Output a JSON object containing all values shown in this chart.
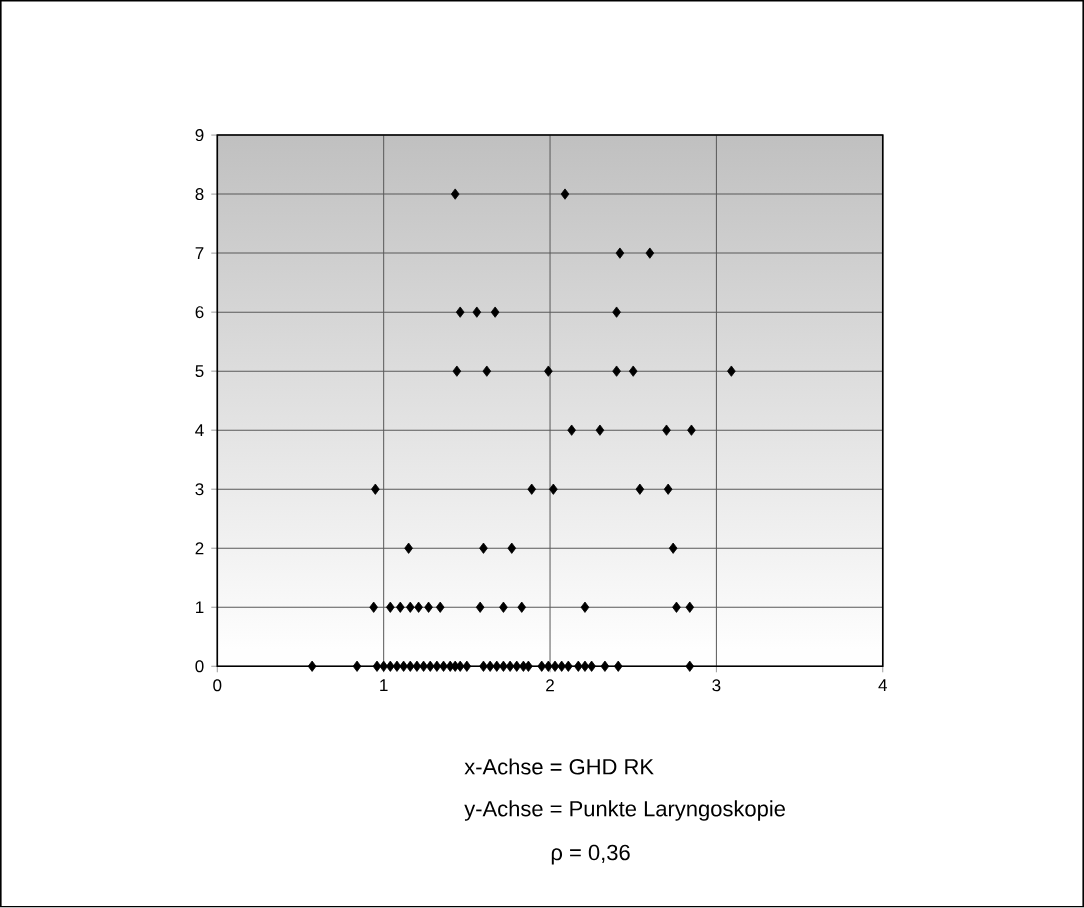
{
  "chart_data": {
    "type": "scatter",
    "xlim": [
      0,
      4
    ],
    "ylim": [
      0,
      9
    ],
    "xticks": [
      0,
      1,
      2,
      3,
      4
    ],
    "yticks": [
      0,
      1,
      2,
      3,
      4,
      5,
      6,
      7,
      8,
      9
    ],
    "grid": true,
    "marker": "diamond",
    "annotations": [
      "x-Achse = GHD RK",
      "y-Achse = Punkte Laryngoskopie",
      "ρ = 0,36"
    ],
    "series": [
      {
        "color": "#000000",
        "x": [
          1.43,
          2.09,
          2.42,
          2.6,
          1.46,
          1.56,
          1.67,
          2.4,
          1.44,
          1.62,
          1.99,
          2.4,
          2.5,
          3.09,
          2.13,
          2.3,
          2.7,
          2.85,
          0.95,
          1.89,
          2.02,
          2.54,
          2.71,
          1.15,
          1.6,
          1.77,
          2.74,
          0.94,
          1.04,
          1.1,
          1.16,
          1.21,
          1.27,
          1.34,
          1.58,
          1.72,
          1.83,
          2.21,
          2.76,
          2.84,
          0.57,
          0.84,
          0.96,
          1.0,
          1.04,
          1.08,
          1.12,
          1.16,
          1.2,
          1.24,
          1.28,
          1.32,
          1.36,
          1.4,
          1.43,
          1.46,
          1.5,
          1.6,
          1.64,
          1.68,
          1.72,
          1.76,
          1.8,
          1.84,
          1.87,
          1.95,
          1.99,
          2.03,
          2.07,
          2.11,
          2.17,
          2.21,
          2.25,
          2.33,
          2.41,
          2.84
        ],
        "values": [
          8,
          8,
          7,
          7,
          6,
          6,
          6,
          6,
          5,
          5,
          5,
          5,
          5,
          5,
          4,
          4,
          4,
          4,
          3,
          3,
          3,
          3,
          3,
          2,
          2,
          2,
          2,
          1,
          1,
          1,
          1,
          1,
          1,
          1,
          1,
          1,
          1,
          1,
          1,
          1,
          0,
          0,
          0,
          0,
          0,
          0,
          0,
          0,
          0,
          0,
          0,
          0,
          0,
          0,
          0,
          0,
          0,
          0,
          0,
          0,
          0,
          0,
          0,
          0,
          0,
          0,
          0,
          0,
          0,
          0,
          0,
          0,
          0,
          0,
          0,
          0
        ]
      }
    ]
  }
}
